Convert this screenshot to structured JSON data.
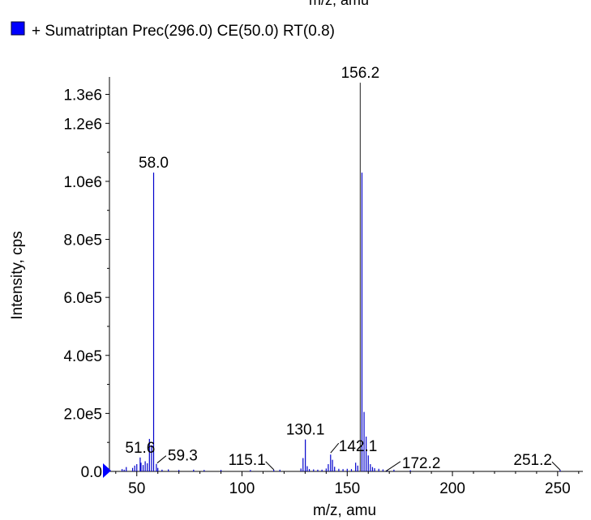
{
  "top_cut_label": "m/z, amu",
  "chart_data": {
    "type": "bar",
    "legend": {
      "text": "+ Sumatriptan Prec(296.0) CE(50.0) RT(0.8)",
      "placement": "top-left",
      "marker_color": "#0000ff"
    },
    "xlabel": "m/z, amu",
    "ylabel": "Intensity, cps",
    "xlim": [
      37,
      262
    ],
    "ylim": [
      0,
      1360000.0
    ],
    "x_ticks": [
      50,
      100,
      150,
      200,
      250
    ],
    "x_tick_labels": [
      "50",
      "100",
      "150",
      "200",
      "250"
    ],
    "y_ticks": [
      0,
      200000,
      400000,
      600000,
      800000,
      1000000,
      1200000,
      1300000
    ],
    "y_tick_labels": [
      "0.0",
      "2.0e5",
      "4.0e5",
      "6.0e5",
      "8.0e5",
      "1.0e6",
      "1.2e6",
      "1.3e6"
    ],
    "colors": {
      "peaks": "#0000cc",
      "main_peak": "#444444",
      "axis": "#000000"
    },
    "peaks": [
      [
        43,
        8000
      ],
      [
        44,
        6000
      ],
      [
        45,
        15000
      ],
      [
        48,
        12000
      ],
      [
        49,
        20000
      ],
      [
        50,
        25000
      ],
      [
        51.6,
        48000
      ],
      [
        52,
        30000
      ],
      [
        53,
        22000
      ],
      [
        54,
        35000
      ],
      [
        55,
        28000
      ],
      [
        56,
        112000
      ],
      [
        57,
        90000
      ],
      [
        58.0,
        1030000
      ],
      [
        59.3,
        26000
      ],
      [
        60,
        12000
      ],
      [
        62,
        6000
      ],
      [
        65,
        7000
      ],
      [
        70,
        5000
      ],
      [
        77,
        6000
      ],
      [
        82,
        5000
      ],
      [
        90,
        5000
      ],
      [
        104,
        5000
      ],
      [
        115.1,
        6000
      ],
      [
        118,
        6000
      ],
      [
        128,
        10000
      ],
      [
        129,
        46000
      ],
      [
        130.1,
        110000
      ],
      [
        131,
        18000
      ],
      [
        132,
        8000
      ],
      [
        134,
        7000
      ],
      [
        136,
        6000
      ],
      [
        138,
        6000
      ],
      [
        140,
        10000
      ],
      [
        141,
        25000
      ],
      [
        142.1,
        58000
      ],
      [
        143,
        40000
      ],
      [
        144,
        16000
      ],
      [
        146,
        9000
      ],
      [
        148,
        8000
      ],
      [
        150,
        9000
      ],
      [
        152,
        8000
      ],
      [
        154,
        30000
      ],
      [
        155,
        20000
      ],
      [
        156.2,
        1340000
      ],
      [
        157,
        1030000
      ],
      [
        158,
        205000
      ],
      [
        159,
        120000
      ],
      [
        160,
        55000
      ],
      [
        161,
        25000
      ],
      [
        162,
        15000
      ],
      [
        163,
        11000
      ],
      [
        165,
        9000
      ],
      [
        167,
        7000
      ],
      [
        169,
        5000
      ],
      [
        172.2,
        6000
      ],
      [
        180,
        4000
      ],
      [
        251.2,
        5000
      ]
    ],
    "annotations": [
      {
        "text": "156.2",
        "x": 156.2,
        "y": 1340000,
        "leader": false
      },
      {
        "text": "58.0",
        "x": 58.0,
        "y": 1030000,
        "leader": false
      },
      {
        "text": "130.1",
        "x": 130.1,
        "y": 110000,
        "leader": false
      },
      {
        "text": "142.1",
        "x": 142.1,
        "y": 58000,
        "leader": true
      },
      {
        "text": "51.6",
        "x": 51.6,
        "y": 48000,
        "leader": false
      },
      {
        "text": "59.3",
        "x": 59.3,
        "y": 26000,
        "leader": true
      },
      {
        "text": "115.1",
        "x": 115.1,
        "y": 6000,
        "leader": true
      },
      {
        "text": "172.2",
        "x": 172.2,
        "y": 6000,
        "leader": true
      },
      {
        "text": "251.2",
        "x": 251.2,
        "y": 5000,
        "leader": true
      }
    ]
  }
}
